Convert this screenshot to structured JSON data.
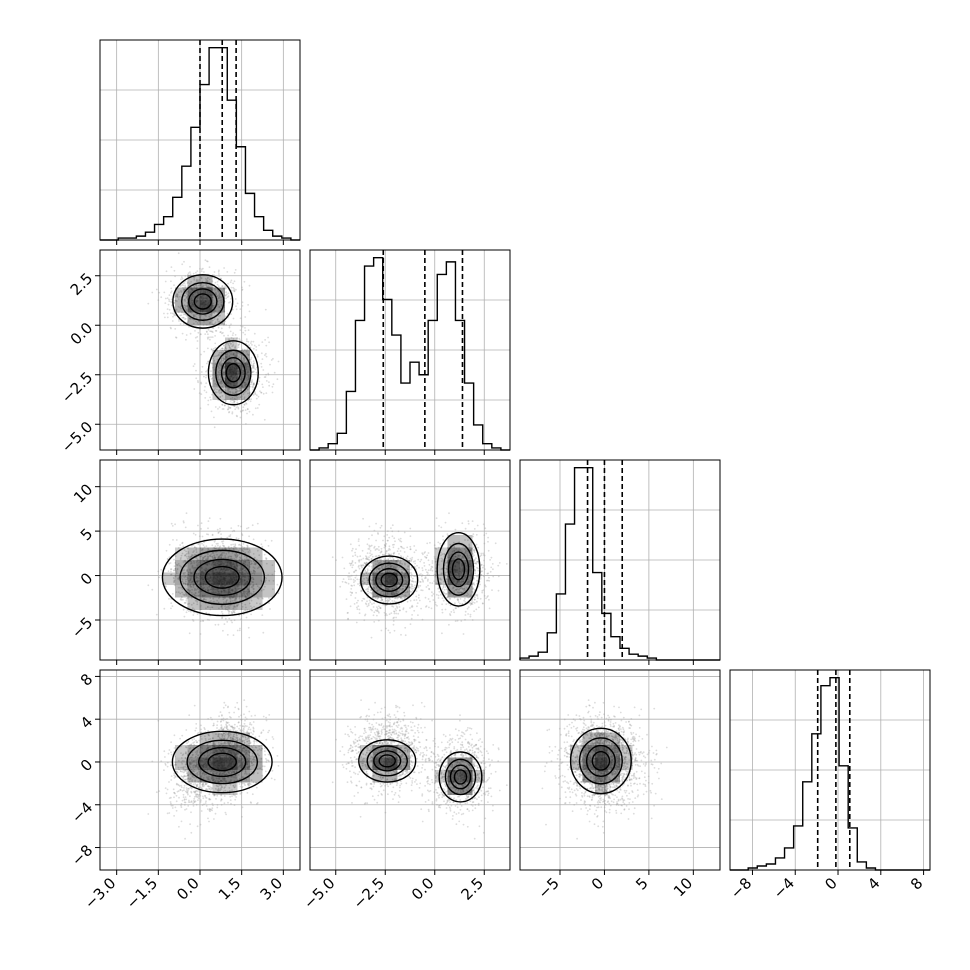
{
  "chart_data": {
    "type": "corner",
    "n_params": 4,
    "axis_ranges": [
      [
        -3.6,
        3.6
      ],
      [
        -6.3,
        3.8
      ],
      [
        -9.5,
        13
      ],
      [
        -10.1,
        8.6
      ]
    ],
    "ticks": [
      {
        "values": [
          -3.0,
          -1.5,
          0.0,
          1.5,
          3.0
        ],
        "labels": [
          "−3.0",
          "−1.5",
          "0.0",
          "1.5",
          "3.0"
        ]
      },
      {
        "values": [
          -5.0,
          -2.5,
          0.0,
          2.5
        ],
        "labels": [
          "−5.0",
          "−2.5",
          "0.0",
          "2.5"
        ]
      },
      {
        "values": [
          -5,
          0,
          5,
          10
        ],
        "labels": [
          "−5",
          "0",
          "5",
          "10"
        ]
      },
      {
        "values": [
          -8,
          -4,
          0,
          4,
          8
        ],
        "labels": [
          "−8",
          "−4",
          "0",
          "4",
          "8"
        ]
      }
    ],
    "quantiles": [
      [
        0.0,
        0.8,
        1.3
      ],
      [
        -2.6,
        -0.5,
        1.4
      ],
      [
        -1.9,
        0.0,
        2.0
      ],
      [
        -1.9,
        -0.2,
        1.1
      ]
    ],
    "histograms": [
      {
        "edges_range": [
          -3.6,
          3.6
        ],
        "counts": [
          0,
          0,
          1,
          1,
          2,
          4,
          8,
          12,
          22,
          38,
          58,
          80,
          99,
          99,
          72,
          48,
          24,
          12,
          5,
          2,
          1,
          0
        ]
      },
      {
        "edges_range": [
          -6.3,
          3.8
        ],
        "counts": [
          0,
          1,
          3,
          8,
          28,
          62,
          88,
          92,
          72,
          55,
          32,
          42,
          36,
          62,
          84,
          90,
          62,
          32,
          12,
          3,
          1,
          0
        ]
      },
      {
        "edges_range": [
          -9.5,
          13
        ],
        "counts": [
          1,
          2,
          4,
          14,
          34,
          70,
          99,
          99,
          45,
          24,
          12,
          6,
          3,
          2,
          1,
          0,
          0,
          0,
          0,
          0,
          0,
          0
        ]
      },
      {
        "edges_range": [
          -10.1,
          8.6
        ],
        "counts": [
          0,
          0,
          1,
          2,
          3,
          6,
          11,
          22,
          44,
          68,
          92,
          96,
          52,
          21,
          4,
          1,
          0,
          0,
          0,
          0,
          0,
          0
        ]
      }
    ],
    "components": [
      {
        "weight": 0.45,
        "mean": [
          0.1,
          1.2,
          0.2,
          -1.2
        ],
        "sd": [
          0.6,
          0.75,
          2.2,
          1.8
        ]
      },
      {
        "weight": 0.55,
        "mean": [
          1.2,
          -2.4,
          -0.3,
          0.8
        ],
        "sd": [
          0.5,
          0.9,
          2.2,
          1.8
        ]
      }
    ],
    "pair_clusters": [
      {
        "pair": [
          1,
          0
        ],
        "blobs": [
          {
            "mean": [
              0.1,
              1.2
            ],
            "sd": [
              0.6,
              0.75
            ]
          },
          {
            "mean": [
              1.2,
              -2.4
            ],
            "sd": [
              0.5,
              0.9
            ]
          }
        ]
      },
      {
        "pair": [
          2,
          0
        ],
        "blobs": [
          {
            "mean": [
              0.8,
              -0.2
            ],
            "sd": [
              1.2,
              2.4
            ]
          }
        ]
      },
      {
        "pair": [
          2,
          1
        ],
        "blobs": [
          {
            "mean": [
              -2.3,
              -0.5
            ],
            "sd": [
              0.8,
              1.5
            ]
          },
          {
            "mean": [
              1.2,
              0.7
            ],
            "sd": [
              0.6,
              2.3
            ]
          }
        ]
      },
      {
        "pair": [
          3,
          0
        ],
        "blobs": [
          {
            "mean": [
              0.8,
              0.0
            ],
            "sd": [
              1.0,
              1.6
            ]
          }
        ]
      },
      {
        "pair": [
          3,
          1
        ],
        "blobs": [
          {
            "mean": [
              -2.4,
              0.1
            ],
            "sd": [
              0.8,
              1.1
            ]
          },
          {
            "mean": [
              1.3,
              -1.4
            ],
            "sd": [
              0.6,
              1.3
            ]
          }
        ]
      },
      {
        "pair": [
          3,
          2
        ],
        "blobs": [
          {
            "mean": [
              -0.4,
              0.1
            ],
            "sd": [
              1.9,
              1.7
            ]
          }
        ]
      }
    ],
    "contour_levels": [
      0.12,
      0.3,
      0.55,
      0.8
    ],
    "grid": true,
    "style": {
      "hist_color": "#000000",
      "scatter_color": "#9a9a9a",
      "grid_color": "#b0b0b0",
      "density_color": "#000000"
    }
  }
}
